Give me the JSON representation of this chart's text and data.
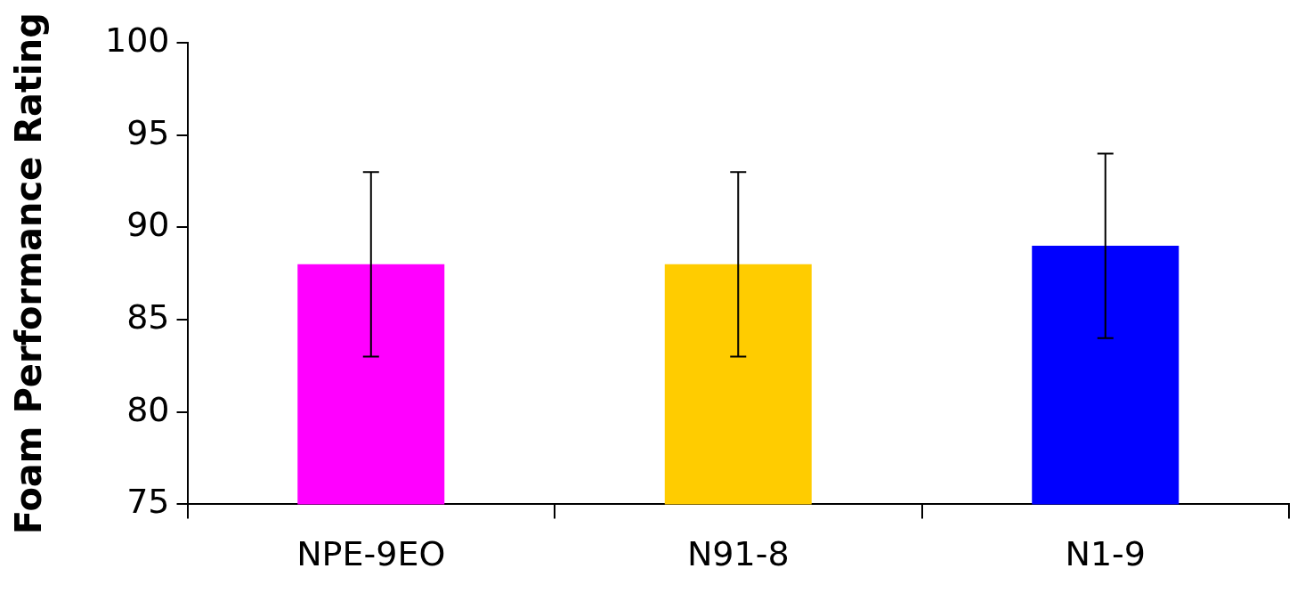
{
  "chart_data": {
    "type": "bar",
    "ylabel": "Foam Performance Rating",
    "categories": [
      "NPE-9EO",
      "N91-8",
      "N1-9"
    ],
    "values": [
      88,
      88,
      89
    ],
    "colors": [
      "#ff00ff",
      "#ffcc00",
      "#0000ff"
    ],
    "errors": [
      5,
      5,
      5
    ],
    "ylim": [
      75,
      100
    ],
    "yticks": [
      75,
      80,
      85,
      90,
      95,
      100
    ],
    "grid": false,
    "legend": false
  }
}
